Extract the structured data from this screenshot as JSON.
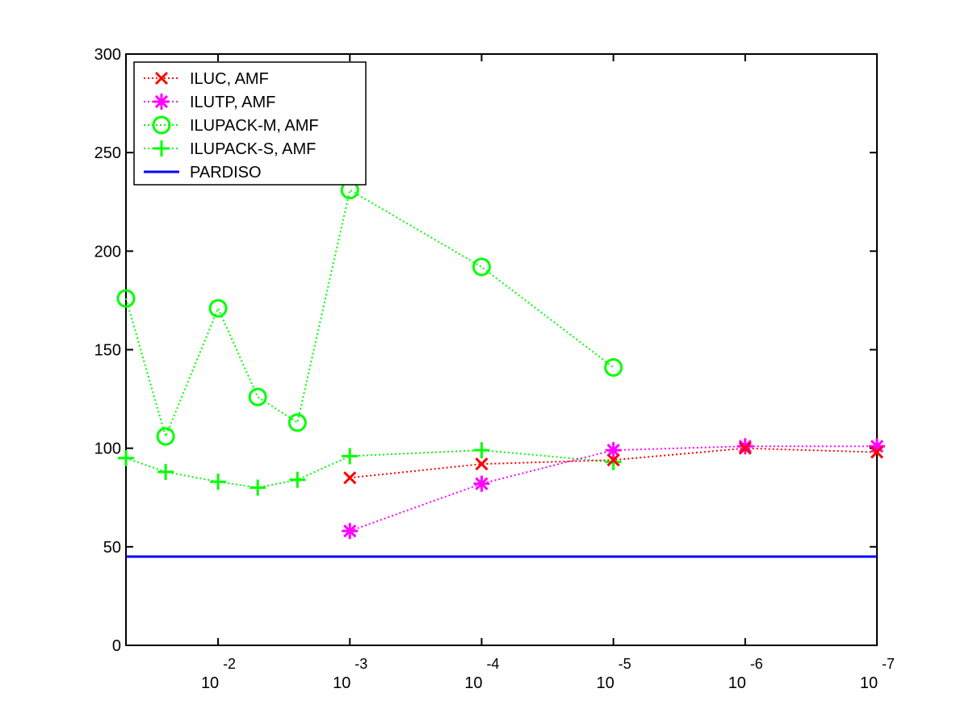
{
  "chart_data": {
    "type": "line",
    "title": "",
    "xlabel": "",
    "ylabel": "",
    "x_scale": "log-reversed",
    "xlim": [
      0.05,
      1e-07
    ],
    "ylim": [
      0,
      300
    ],
    "grid": false,
    "legend_position": "top-left",
    "y_ticks": [
      "0",
      "50",
      "100",
      "150",
      "200",
      "250",
      "300"
    ],
    "x_ticks": [
      {
        "value": 0.01,
        "base": "10",
        "exp": "-2"
      },
      {
        "value": 0.001,
        "base": "10",
        "exp": "-3"
      },
      {
        "value": 0.0001,
        "base": "10",
        "exp": "-4"
      },
      {
        "value": 1e-05,
        "base": "10",
        "exp": "-5"
      },
      {
        "value": 1e-06,
        "base": "10",
        "exp": "-6"
      },
      {
        "value": 1e-07,
        "base": "10",
        "exp": "-7"
      }
    ],
    "series": [
      {
        "name": "ILUC, AMF",
        "color": "#ff0000",
        "marker": "x",
        "line": "dotted",
        "x": [
          0.001,
          0.0001,
          1e-05,
          1e-06,
          1e-07
        ],
        "y": [
          85,
          92,
          94,
          100,
          98
        ]
      },
      {
        "name": "ILUTP, AMF",
        "color": "#ff00ff",
        "marker": "star",
        "line": "dotted",
        "x": [
          0.001,
          0.0001,
          1e-05,
          1e-06,
          1e-07
        ],
        "y": [
          58,
          82,
          99,
          101,
          101
        ]
      },
      {
        "name": "ILUPACK-M, AMF",
        "color": "#00ff00",
        "marker": "circle",
        "line": "dotted",
        "x": [
          0.05,
          0.025,
          0.01,
          0.005,
          0.0025,
          0.001,
          0.0001,
          1e-05
        ],
        "y": [
          176,
          106,
          171,
          126,
          113,
          231,
          192,
          141
        ]
      },
      {
        "name": "ILUPACK-S, AMF",
        "color": "#00ff00",
        "marker": "plus",
        "line": "dotted",
        "x": [
          0.05,
          0.025,
          0.01,
          0.005,
          0.0025,
          0.001,
          0.0001,
          1e-05
        ],
        "y": [
          95,
          88,
          83,
          80,
          84,
          96,
          99,
          93
        ]
      },
      {
        "name": "PARDISO",
        "color": "#0000ff",
        "marker": "none",
        "line": "solid",
        "x": [
          0.05,
          1e-07
        ],
        "y": [
          45,
          45
        ]
      }
    ]
  }
}
